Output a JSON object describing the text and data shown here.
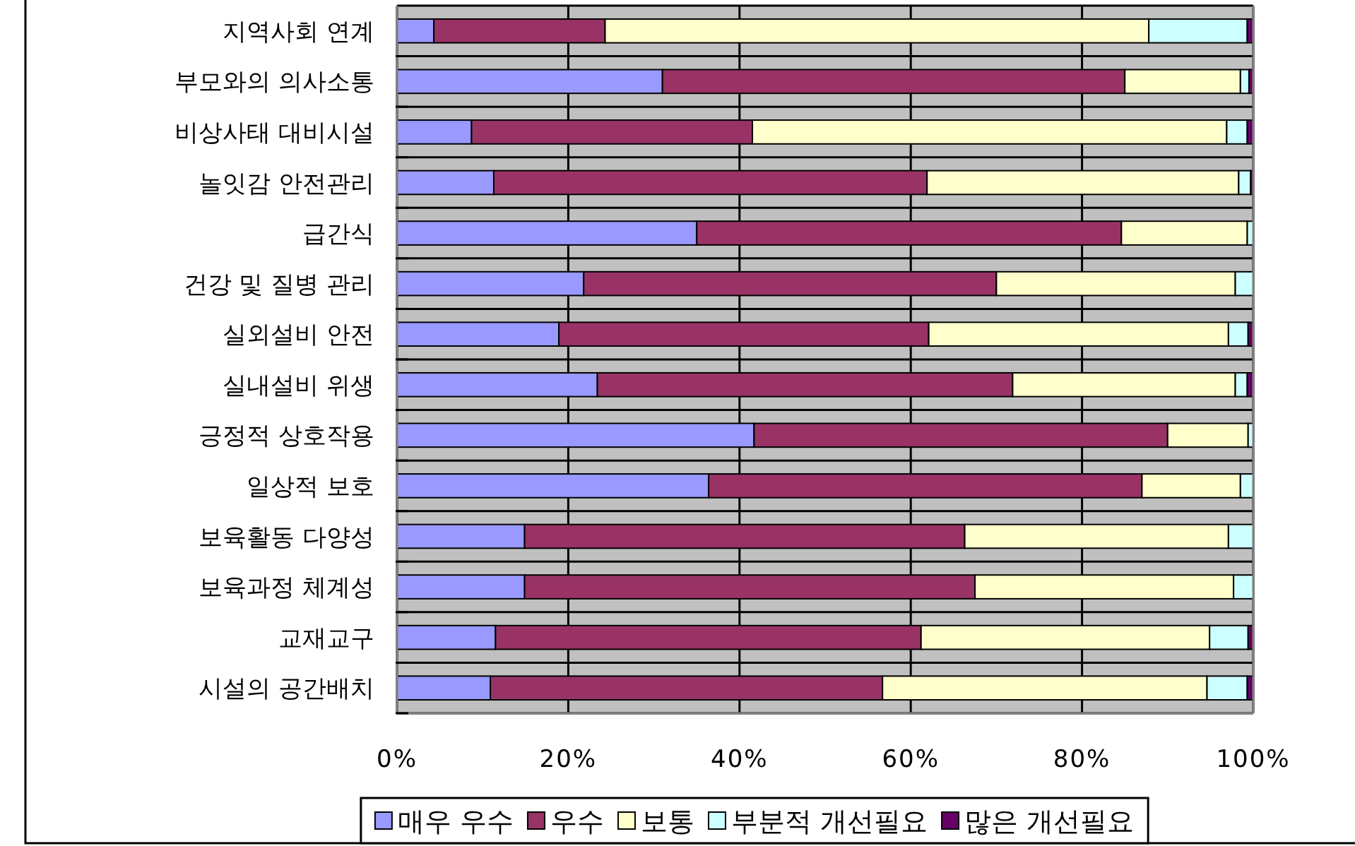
{
  "chart_data": {
    "type": "bar",
    "orientation": "horizontal",
    "stacked": true,
    "categories": [
      "지역사회 연계",
      "부모와의 의사소통",
      "비상사태 대비시설",
      "놀잇감 안전관리",
      "급간식",
      "건강 및 질병 관리",
      "실외설비 안전",
      "실내설비 위생",
      "긍정적 상호작용",
      "일상적 보호",
      "보육활동 다양성",
      "보육과정 체계성",
      "교재교구",
      "시설의 공간배치"
    ],
    "series": [
      {
        "name": "매우 우수",
        "color": "#9999ff",
        "values": [
          4.3,
          31.0,
          8.7,
          11.3,
          35.0,
          21.8,
          18.9,
          23.4,
          41.7,
          36.4,
          14.9,
          14.9,
          11.5,
          10.9
        ]
      },
      {
        "name": "우수",
        "color": "#993366",
        "values": [
          20.0,
          54.0,
          32.8,
          50.6,
          49.6,
          48.2,
          43.2,
          48.5,
          48.3,
          50.6,
          51.4,
          52.6,
          49.7,
          45.8
        ]
      },
      {
        "name": "보통",
        "color": "#ffffcc",
        "values": [
          63.5,
          13.5,
          55.4,
          36.4,
          14.7,
          27.9,
          35.0,
          26.0,
          9.4,
          11.5,
          30.8,
          30.2,
          33.7,
          37.9
        ]
      },
      {
        "name": "부분적 개선필요",
        "color": "#ccffff",
        "values": [
          11.5,
          1.0,
          2.4,
          1.4,
          0.7,
          2.1,
          2.3,
          1.4,
          0.6,
          1.5,
          2.9,
          2.3,
          4.5,
          4.7
        ]
      },
      {
        "name": "많은 개선필요",
        "color": "#660066",
        "values": [
          0.7,
          0.5,
          0.7,
          0.3,
          0,
          0,
          0.6,
          0.7,
          0,
          0,
          0,
          0,
          0.6,
          0.7
        ]
      }
    ],
    "xlim": [
      0,
      100
    ],
    "xticks": [
      {
        "value": 0,
        "label": "0%"
      },
      {
        "value": 20,
        "label": "20%"
      },
      {
        "value": 40,
        "label": "40%"
      },
      {
        "value": 60,
        "label": "60%"
      },
      {
        "value": 80,
        "label": "80%"
      },
      {
        "value": 100,
        "label": "100%"
      }
    ],
    "grid": true,
    "legend": "bottom"
  }
}
